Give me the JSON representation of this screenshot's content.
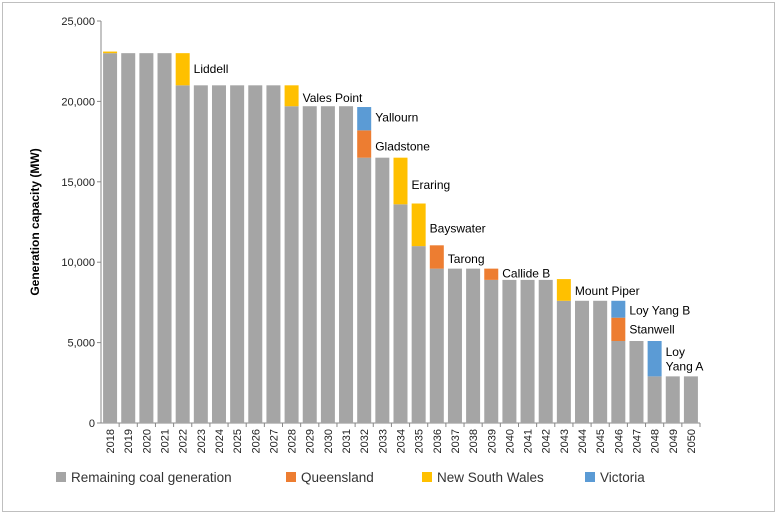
{
  "chart_data": {
    "type": "bar",
    "stacked": true,
    "ylabel": "Generation capacity (MW)",
    "ylim": [
      0,
      25000
    ],
    "yticks": [
      0,
      5000,
      10000,
      15000,
      20000,
      25000
    ],
    "ytick_labels": [
      "0",
      "5,000",
      "10,000",
      "15,000",
      "20,000",
      "25,000"
    ],
    "grid": false,
    "legend_position": "bottom",
    "categories": [
      "2018",
      "2019",
      "2020",
      "2021",
      "2022",
      "2023",
      "2024",
      "2025",
      "2026",
      "2027",
      "2028",
      "2029",
      "2030",
      "2031",
      "2032",
      "2033",
      "2034",
      "2035",
      "2036",
      "2037",
      "2038",
      "2039",
      "2040",
      "2041",
      "2042",
      "2043",
      "2044",
      "2045",
      "2046",
      "2047",
      "2048",
      "2049",
      "2050"
    ],
    "series": [
      {
        "name": "Remaining coal generation",
        "color": "#a5a5a5",
        "values": [
          23000,
          23000,
          23000,
          23000,
          21000,
          21000,
          21000,
          21000,
          21000,
          21000,
          19700,
          19700,
          19700,
          19700,
          16500,
          16500,
          13600,
          11000,
          9600,
          9600,
          9600,
          8900,
          8900,
          8900,
          8900,
          7600,
          7600,
          7600,
          5100,
          5100,
          2900,
          2900,
          2900
        ]
      },
      {
        "name": "Queensland",
        "color": "#ed7d31",
        "values": [
          0,
          0,
          0,
          0,
          0,
          0,
          0,
          0,
          0,
          0,
          0,
          0,
          0,
          0,
          1700,
          0,
          0,
          0,
          1450,
          0,
          0,
          700,
          0,
          0,
          0,
          0,
          0,
          0,
          1450,
          0,
          0,
          0,
          0
        ]
      },
      {
        "name": "New South Wales",
        "color": "#ffc000",
        "values": [
          100,
          0,
          0,
          0,
          2000,
          0,
          0,
          0,
          0,
          0,
          1300,
          0,
          0,
          0,
          0,
          0,
          2900,
          2650,
          0,
          0,
          0,
          0,
          0,
          0,
          0,
          1350,
          0,
          0,
          0,
          0,
          0,
          0,
          0
        ]
      },
      {
        "name": "Victoria",
        "color": "#5b9bd5",
        "values": [
          0,
          0,
          0,
          0,
          0,
          0,
          0,
          0,
          0,
          0,
          0,
          0,
          0,
          0,
          1450,
          0,
          0,
          0,
          0,
          0,
          0,
          0,
          0,
          0,
          0,
          0,
          0,
          0,
          1050,
          0,
          2200,
          0,
          0
        ]
      }
    ],
    "annotations": [
      {
        "text": "Liddell",
        "index": 4,
        "value": 22000
      },
      {
        "text": "Vales Point",
        "index": 10,
        "value": 20200
      },
      {
        "text": "Yallourn",
        "index": 14,
        "value": 19000
      },
      {
        "text": "Gladstone",
        "index": 14,
        "value": 17200
      },
      {
        "text": "Eraring",
        "index": 16,
        "value": 14800
      },
      {
        "text": "Bayswater",
        "index": 17,
        "value": 12100
      },
      {
        "text": "Tarong",
        "index": 18,
        "value": 10200
      },
      {
        "text": "Callide B",
        "index": 21,
        "value": 9300
      },
      {
        "text": "Mount Piper",
        "index": 25,
        "value": 8200
      },
      {
        "text": "Loy Yang B",
        "index": 28,
        "value": 7000
      },
      {
        "text": "Stanwell",
        "index": 28,
        "value": 5800
      },
      {
        "text": "Loy",
        "index": 30,
        "value": 4400
      },
      {
        "text": "Yang A",
        "index": 30,
        "value": 3500
      }
    ]
  }
}
